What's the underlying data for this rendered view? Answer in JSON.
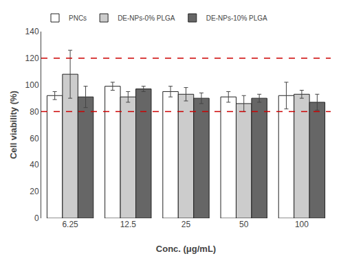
{
  "chart_data": {
    "type": "bar",
    "categories": [
      "6.25",
      "12.5",
      "25",
      "50",
      "100"
    ],
    "series": [
      {
        "name": "PNCs",
        "color": "#ffffff",
        "values": [
          92,
          99,
          95,
          91,
          92
        ],
        "errors": [
          3,
          3,
          4,
          4,
          10
        ]
      },
      {
        "name": "DE-NPs-0% PLGA",
        "color": "#cccccc",
        "values": [
          108,
          91,
          93,
          86,
          93
        ],
        "errors": [
          18,
          4,
          5,
          6,
          3
        ]
      },
      {
        "name": "DE-NPs-10% PLGA",
        "color": "#666666",
        "values": [
          91,
          97,
          90,
          90,
          87
        ],
        "errors": [
          8,
          2,
          4,
          3,
          6
        ]
      }
    ],
    "xlabel": "Conc. (μg/mL)",
    "ylabel": "Cell viability (%)",
    "ylim": [
      0,
      140
    ],
    "yticks": [
      0,
      20,
      40,
      60,
      80,
      100,
      120,
      140
    ],
    "hlines": [
      {
        "value": 80,
        "color": "#cc0000",
        "line_style": "dashed"
      },
      {
        "value": 120,
        "color": "#cc0000",
        "line_style": "dashed"
      }
    ],
    "legend": "upper left",
    "grid": false
  }
}
